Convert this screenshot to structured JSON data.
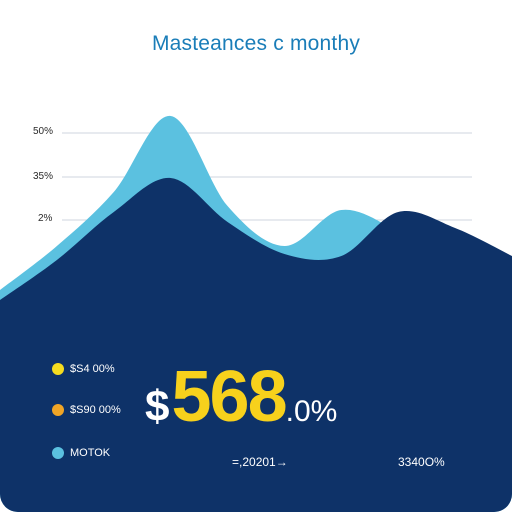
{
  "chart_data": {
    "type": "area",
    "title": "Masteances c monthy",
    "y_tick_labels": [
      "50%",
      "35%",
      "2%"
    ],
    "grid": true,
    "series": [
      {
        "color": "#5bc1e0",
        "values": [
          5,
          27,
          54,
          92,
          47,
          27,
          45,
          34,
          15,
          13
        ]
      },
      {
        "color": "#0e3268",
        "values": [
          0,
          20,
          44,
          61,
          39,
          23,
          22,
          44,
          36,
          22
        ]
      }
    ],
    "ylim": [
      0,
      100
    ]
  },
  "legend": [
    {
      "label": "$S4 00%",
      "color": "#f5dc1f"
    },
    {
      "label": "$S90 00%",
      "color": "#f0a526"
    },
    {
      "label": "MOTOK",
      "color": "#5bc1e0"
    }
  ],
  "highlight": {
    "currency": "$",
    "value": "568",
    "suffix": ".0%"
  },
  "footer": {
    "left": "=,20201→",
    "right": "3340O%"
  },
  "colors": {
    "title": "#1a7db8",
    "accent_yellow": "#f7d11c",
    "navy": "#0e3268",
    "light_blue": "#5bc1e0",
    "grid": "#cfd6df"
  }
}
